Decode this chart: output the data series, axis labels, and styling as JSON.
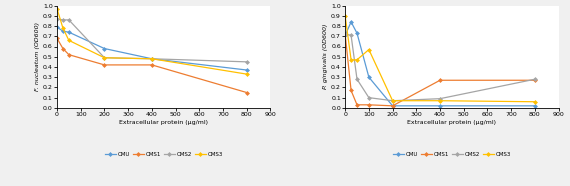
{
  "left": {
    "ylabel": "F. nucleatum (OD600)",
    "xlabel": "Extracellular protein (μg/ml)",
    "x": [
      0,
      25,
      50,
      200,
      400,
      800
    ],
    "CMU": [
      0.79,
      0.75,
      0.74,
      0.58,
      0.48,
      0.37
    ],
    "CMS1": [
      0.68,
      0.58,
      0.52,
      0.42,
      0.42,
      0.15
    ],
    "CMS2": [
      0.87,
      0.86,
      0.86,
      0.49,
      0.48,
      0.45
    ],
    "CMS3": [
      0.97,
      0.78,
      0.66,
      0.49,
      0.48,
      0.33
    ],
    "ylim": [
      0,
      1.0
    ]
  },
  "right": {
    "ylabel": "P. gingivalis (OD600)",
    "xlabel": "Extracellular protein (μg/ml)",
    "x": [
      0,
      25,
      50,
      100,
      200,
      400,
      800
    ],
    "CMU": [
      0.71,
      0.84,
      0.73,
      0.3,
      0.02,
      0.02,
      0.02
    ],
    "CMS1": [
      0.72,
      0.17,
      0.03,
      0.03,
      0.02,
      0.27,
      0.27
    ],
    "CMS2": [
      0.72,
      0.71,
      0.28,
      0.1,
      0.07,
      0.09,
      0.28
    ],
    "CMS3": [
      0.9,
      0.47,
      0.47,
      0.57,
      0.07,
      0.07,
      0.06
    ],
    "ylim": [
      0,
      1.0
    ]
  },
  "colors": {
    "CMU": "#5b9bd5",
    "CMS1": "#ed7d31",
    "CMS2": "#a5a5a5",
    "CMS3": "#ffc000"
  },
  "legend_labels": [
    "CMU",
    "CMS1",
    "CMS2",
    "CMS3"
  ],
  "marker": "D",
  "markersize": 2.5,
  "linewidth": 0.9,
  "yticks": [
    0,
    0.1,
    0.2,
    0.3,
    0.4,
    0.5,
    0.6,
    0.7,
    0.8,
    0.9,
    1.0
  ],
  "xticks": [
    0,
    100,
    200,
    300,
    400,
    500,
    600,
    700,
    800,
    900
  ]
}
